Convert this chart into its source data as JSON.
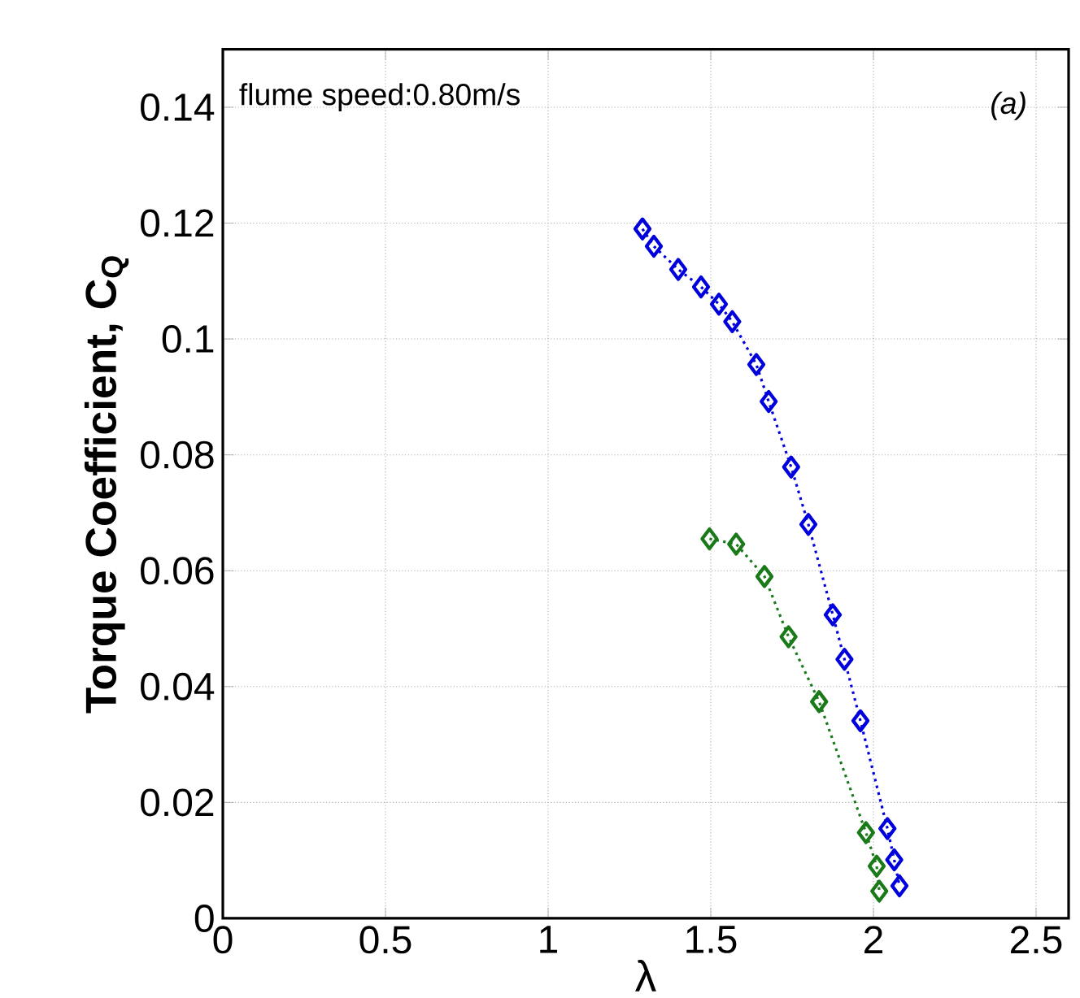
{
  "chart_data": {
    "type": "line",
    "xlabel": "λ",
    "ylabel": "Torque Coefficient, C$_{Q}$",
    "annotations": [
      "flume speed:0.80m/s",
      "(a)"
    ],
    "xlim": [
      0,
      2.6
    ],
    "ylim": [
      0,
      0.15
    ],
    "xticks": [
      0,
      0.5,
      1,
      1.5,
      2,
      2.5
    ],
    "yticks": [
      0,
      0.02,
      0.04,
      0.06,
      0.08,
      0.1,
      0.12,
      0.14
    ],
    "grid": true,
    "marker": "diamond",
    "line_style": "dotted",
    "series": [
      {
        "color": "#0000dd",
        "x": [
          1.29,
          1.325,
          1.4,
          1.47,
          1.525,
          1.566,
          1.64,
          1.678,
          1.747,
          1.8,
          1.875,
          1.911,
          1.96,
          2.043,
          2.064,
          2.08
        ],
        "values": [
          0.119,
          0.116,
          0.112,
          0.109,
          0.106,
          0.103,
          0.0956,
          0.0892,
          0.0779,
          0.068,
          0.0524,
          0.0447,
          0.0341,
          0.0155,
          0.0101,
          0.0056
        ]
      },
      {
        "color": "#1a7a1a",
        "x": [
          1.496,
          1.578,
          1.665,
          1.739,
          1.833,
          1.977,
          2.01,
          2.018
        ],
        "values": [
          0.0655,
          0.0646,
          0.059,
          0.0486,
          0.0374,
          0.0148,
          0.009,
          0.0047
        ]
      }
    ]
  }
}
